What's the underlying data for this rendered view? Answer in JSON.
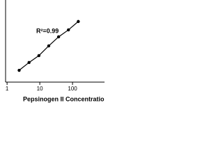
{
  "chart_data": {
    "type": "scatter",
    "x_label": "Pepsinogen II Concentration (ng/mL)",
    "annotation": "R²=0.99",
    "x": [
      2.34,
      4.69,
      9.38,
      18.75,
      37.5,
      75,
      150
    ],
    "series": [
      {
        "color": "#000000",
        "values": [
          0.027,
          0.052,
          0.093,
          0.21,
          0.45,
          0.81,
          1.64
        ]
      }
    ],
    "xlim": [
      0.9,
      950
    ],
    "xticks": [
      1,
      10,
      100
    ],
    "ylim": [
      0.01,
      10
    ],
    "log_x": true,
    "log_y": true,
    "line": true
  }
}
